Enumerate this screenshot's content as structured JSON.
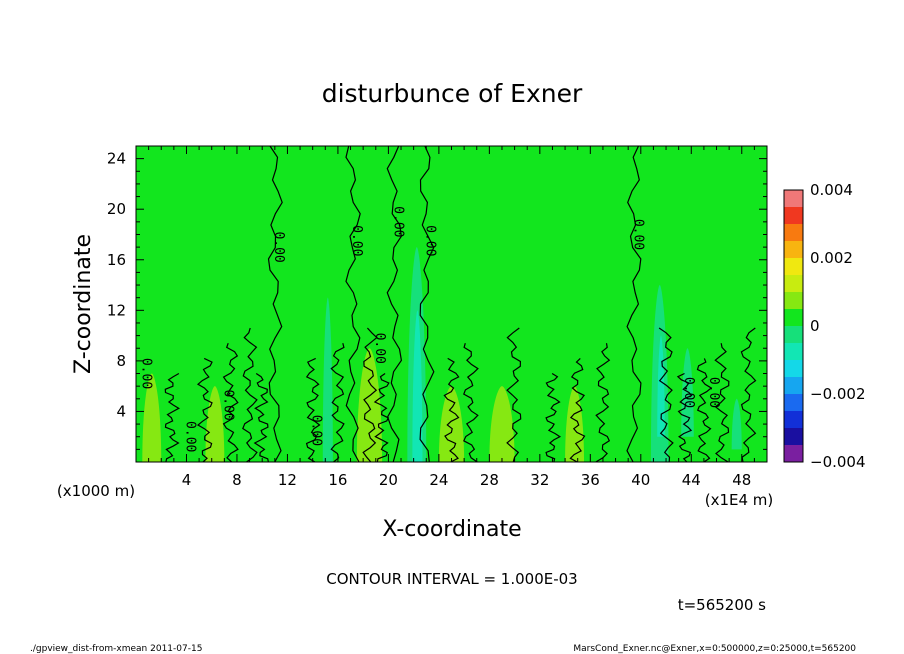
{
  "chart_data": {
    "type": "heatmap",
    "title": "disturbunce of Exner",
    "xlabel": "X-coordinate",
    "ylabel": "Z-coordinate",
    "x_unit": "(x1E4 m)",
    "y_unit": "(x1000 m)",
    "xlim": [
      0,
      50
    ],
    "ylim": [
      0,
      25
    ],
    "x_ticks": [
      4,
      8,
      12,
      16,
      20,
      24,
      28,
      32,
      36,
      40,
      44,
      48
    ],
    "y_ticks": [
      4,
      8,
      12,
      16,
      20,
      24
    ],
    "colorbar": {
      "range": [
        -0.004,
        0.004
      ],
      "labels": [
        {
          "value": 0.004,
          "text": "0.004"
        },
        {
          "value": 0.002,
          "text": "0.002"
        },
        {
          "value": 0,
          "text": "0"
        },
        {
          "value": -0.002,
          "text": "−0.002"
        },
        {
          "value": -0.004,
          "text": "−0.004"
        }
      ],
      "levels": [
        {
          "from": -0.004,
          "to": -0.0035,
          "color": "#7a1fa0"
        },
        {
          "from": -0.0035,
          "to": -0.003,
          "color": "#1a0fa0"
        },
        {
          "from": -0.003,
          "to": -0.0025,
          "color": "#1230d8"
        },
        {
          "from": -0.0025,
          "to": -0.002,
          "color": "#1a6af0"
        },
        {
          "from": -0.002,
          "to": -0.0015,
          "color": "#16a6f0"
        },
        {
          "from": -0.0015,
          "to": -0.001,
          "color": "#14d8e8"
        },
        {
          "from": -0.001,
          "to": -0.0005,
          "color": "#12e6b4"
        },
        {
          "from": -0.0005,
          "to": 0,
          "color": "#16e07a"
        },
        {
          "from": 0,
          "to": 0.0005,
          "color": "#12e61e"
        },
        {
          "from": 0.0005,
          "to": 0.001,
          "color": "#86e812"
        },
        {
          "from": 0.001,
          "to": 0.0015,
          "color": "#c8ec10"
        },
        {
          "from": 0.0015,
          "to": 0.002,
          "color": "#f0e810"
        },
        {
          "from": 0.002,
          "to": 0.0025,
          "color": "#f8b410"
        },
        {
          "from": 0.0025,
          "to": 0.003,
          "color": "#f87a10"
        },
        {
          "from": 0.003,
          "to": 0.0035,
          "color": "#f03820"
        },
        {
          "from": 0.0035,
          "to": 0.004,
          "color": "#f07878"
        }
      ]
    },
    "background_level": {
      "value_range": [
        0,
        0.0005
      ],
      "color": "#12e61e"
    },
    "features": [
      {
        "kind": "negative",
        "x_range": [
          21.5,
          23
        ],
        "z_range": [
          0,
          17
        ],
        "color": "#16e07a"
      },
      {
        "kind": "negative",
        "x_range": [
          21.9,
          22.7
        ],
        "z_range": [
          0,
          12
        ],
        "color": "#12e6b4"
      },
      {
        "kind": "negative",
        "x_range": [
          14.8,
          15.6
        ],
        "z_range": [
          0,
          13
        ],
        "color": "#16e07a"
      },
      {
        "kind": "negative",
        "x_range": [
          40.8,
          42.2
        ],
        "z_range": [
          0,
          14
        ],
        "color": "#16e07a"
      },
      {
        "kind": "negative",
        "x_range": [
          41.3,
          41.9
        ],
        "z_range": [
          2,
          10
        ],
        "color": "#12e6b4"
      },
      {
        "kind": "negative",
        "x_range": [
          43.2,
          44.2
        ],
        "z_range": [
          2,
          9
        ],
        "color": "#16e07a"
      },
      {
        "kind": "negative",
        "x_range": [
          47.2,
          48
        ],
        "z_range": [
          1,
          5
        ],
        "color": "#16e07a"
      },
      {
        "kind": "positive",
        "x_range": [
          0.5,
          2
        ],
        "z_range": [
          0,
          7
        ],
        "color": "#86e812"
      },
      {
        "kind": "positive",
        "x_range": [
          5.5,
          7
        ],
        "z_range": [
          0,
          6
        ],
        "color": "#86e812"
      },
      {
        "kind": "positive",
        "x_range": [
          17.5,
          19.5
        ],
        "z_range": [
          0,
          9
        ],
        "color": "#86e812"
      },
      {
        "kind": "positive",
        "x_range": [
          24,
          26
        ],
        "z_range": [
          0,
          6
        ],
        "color": "#86e812"
      },
      {
        "kind": "positive",
        "x_range": [
          28,
          30
        ],
        "z_range": [
          0,
          6
        ],
        "color": "#86e812"
      },
      {
        "kind": "positive",
        "x_range": [
          34,
          35.5
        ],
        "z_range": [
          0,
          6
        ],
        "color": "#86e812"
      }
    ],
    "contour_interval": "CONTOUR INTERVAL = 1.000E-03",
    "contour_labels": [
      "0.00"
    ],
    "time": "t=565200 s"
  },
  "footer": {
    "left": "./gpview_dist-from-xmean  2011-07-15",
    "right": "MarsCond_Exner.nc@Exner,x=0:500000,z=0:25000,t=565200"
  }
}
